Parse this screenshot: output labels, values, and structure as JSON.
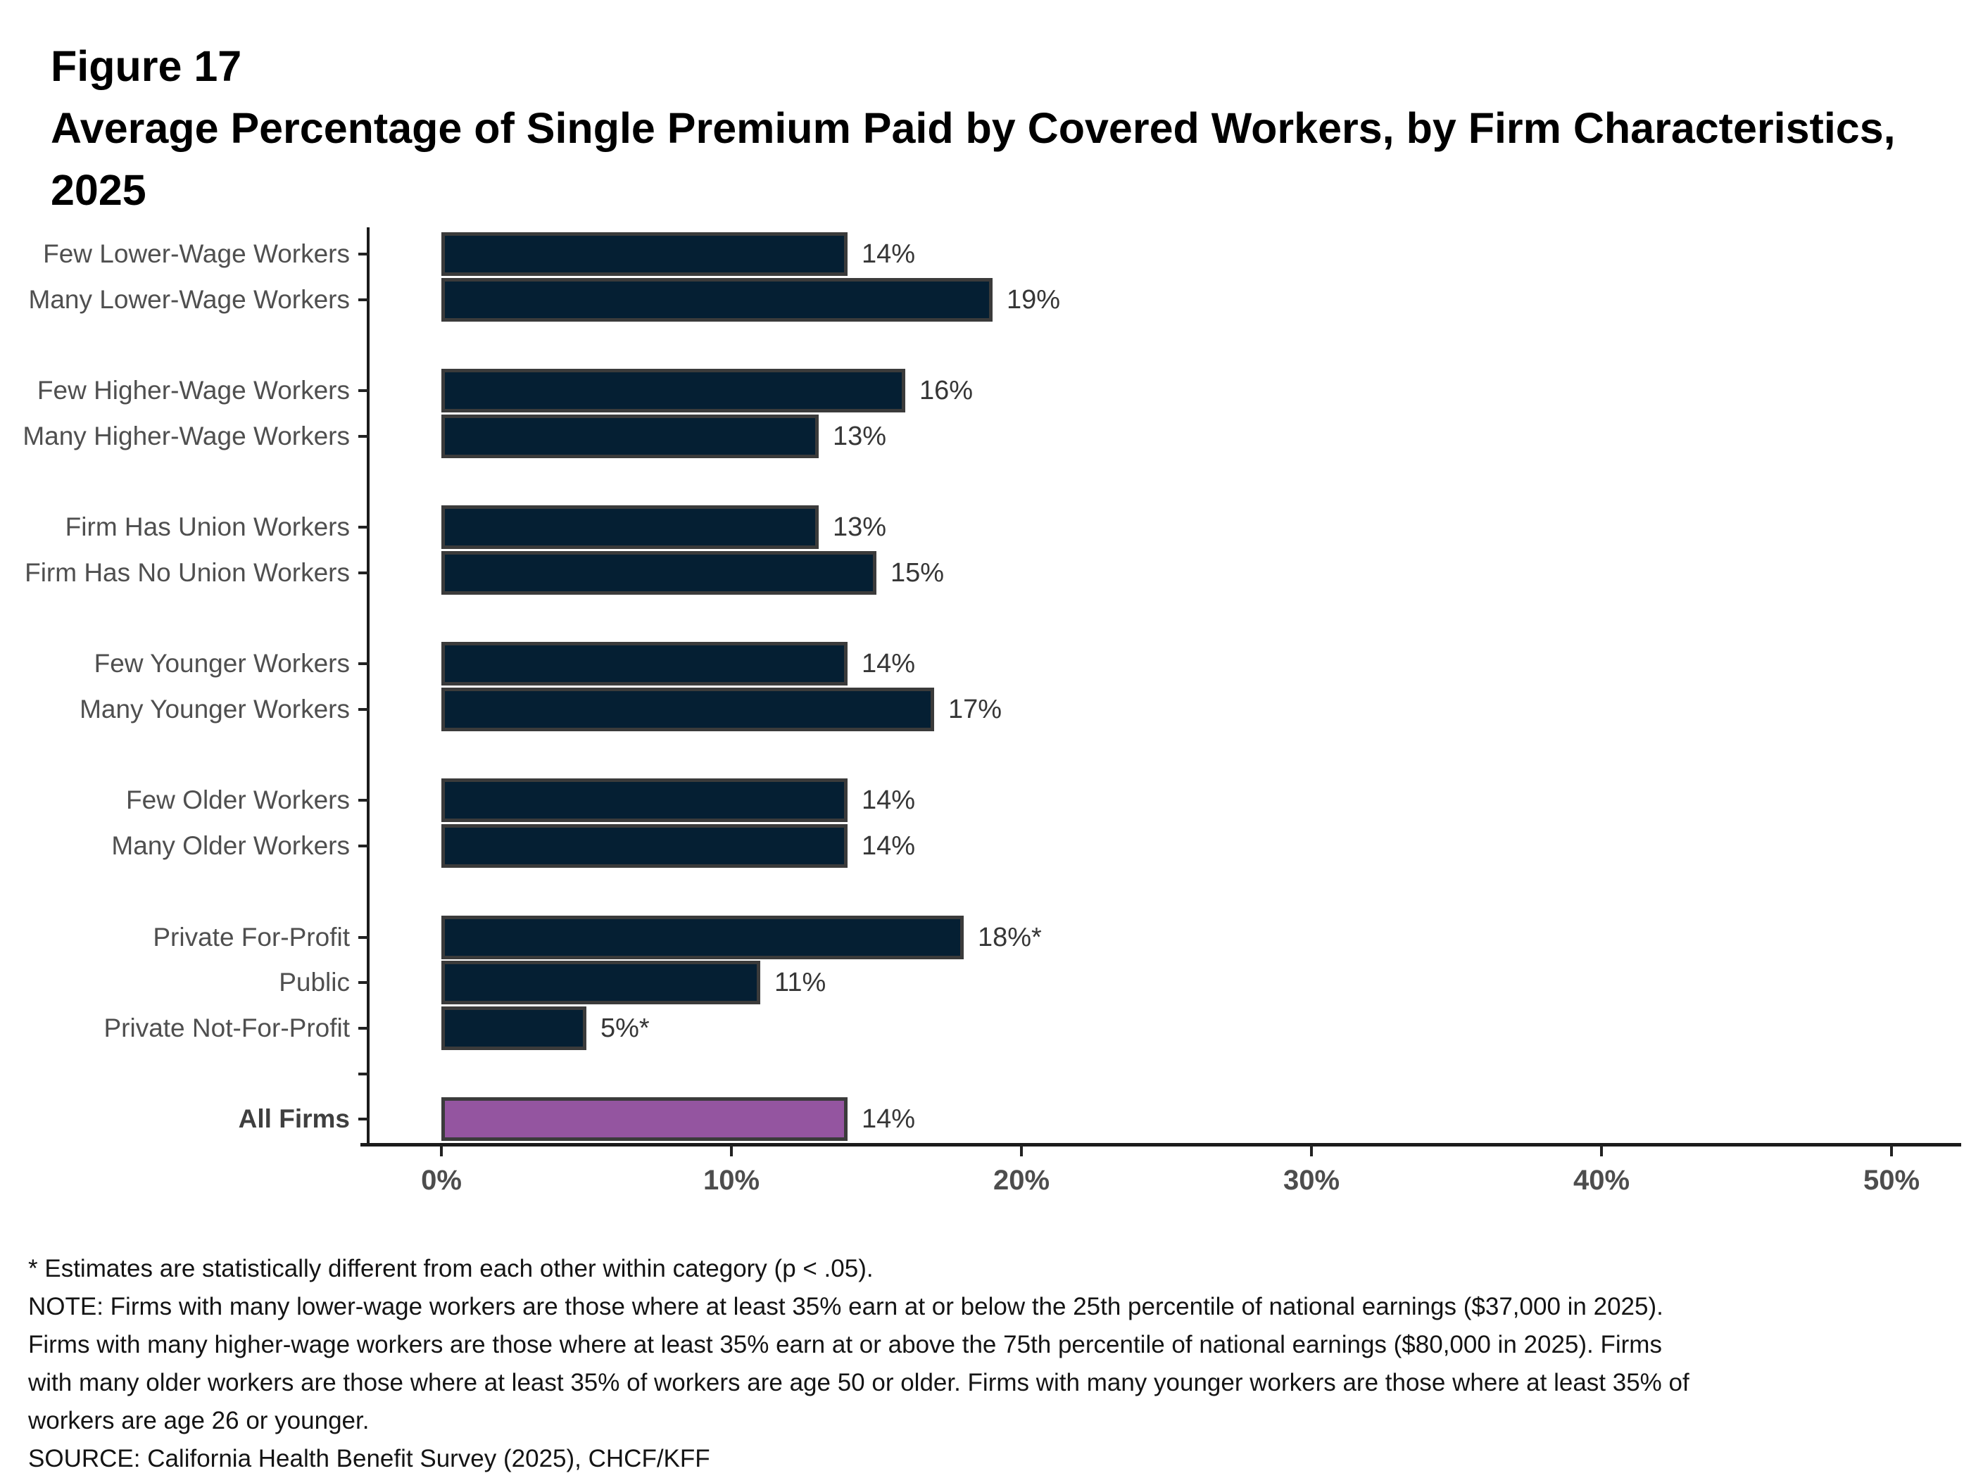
{
  "header": {
    "figure_label": "Figure 17",
    "title_line1": "Average Percentage of Single Premium Paid by Covered Workers, by Firm Characteristics,",
    "title_line2": "2025"
  },
  "chart_data": {
    "type": "bar",
    "orientation": "horizontal",
    "title": "Average Percentage of Single Premium Paid by Covered Workers, by Firm Characteristics, 2025",
    "xlabel": "",
    "ylabel": "",
    "xlim": [
      0,
      50
    ],
    "grid": false,
    "legend": false,
    "x_axis": {
      "ticks": [
        {
          "label": "0%",
          "value": 0
        },
        {
          "label": "10%",
          "value": 10
        },
        {
          "label": "20%",
          "value": 20
        },
        {
          "label": "30%",
          "value": 30
        },
        {
          "label": "40%",
          "value": 40
        },
        {
          "label": "50%",
          "value": 50
        }
      ]
    },
    "groups": [
      {
        "items": [
          {
            "label": "Few Lower-Wage Workers",
            "value": 14,
            "display": "14%"
          },
          {
            "label": "Many Lower-Wage Workers",
            "value": 19,
            "display": "19%"
          }
        ]
      },
      {
        "items": [
          {
            "label": "Few Higher-Wage Workers",
            "value": 16,
            "display": "16%"
          },
          {
            "label": "Many Higher-Wage Workers",
            "value": 13,
            "display": "13%"
          }
        ]
      },
      {
        "items": [
          {
            "label": "Firm Has Union Workers",
            "value": 13,
            "display": "13%"
          },
          {
            "label": "Firm Has No Union Workers",
            "value": 15,
            "display": "15%"
          }
        ]
      },
      {
        "items": [
          {
            "label": "Few Younger Workers",
            "value": 14,
            "display": "14%"
          },
          {
            "label": "Many Younger Workers",
            "value": 17,
            "display": "17%"
          }
        ]
      },
      {
        "items": [
          {
            "label": "Few Older Workers",
            "value": 14,
            "display": "14%"
          },
          {
            "label": "Many Older Workers",
            "value": 14,
            "display": "14%"
          }
        ]
      },
      {
        "items": [
          {
            "label": "Private For-Profit",
            "value": 18,
            "display": "18%*"
          },
          {
            "label": "Public",
            "value": 11,
            "display": "11%"
          },
          {
            "label": "Private Not-For-Profit",
            "value": 5,
            "display": "5%*"
          }
        ]
      },
      {
        "items": [
          {
            "label": "All Firms",
            "value": 14,
            "display": "14%",
            "highlight": true,
            "emphasis": true
          }
        ]
      }
    ],
    "colors": {
      "bar_fill": "#051F33",
      "bar_border": "#3B3B3B",
      "highlight_fill": "#9455A0",
      "axis": "#1B1B1B",
      "category_label": "#4F4F4F",
      "emphasis_label": "#3F3F3F",
      "value_label": "#363636",
      "tick_label": "#4D4D4D"
    }
  },
  "footnote": {
    "asterisk_line": "* Estimates are statistically different from each other within category (p < .05).",
    "note_lines": [
      "NOTE: Firms with many lower-wage workers are those where at least 35% earn at or below the 25th percentile of national earnings ($37,000 in 2025).",
      "Firms with many higher-wage workers are those where at least 35% earn at or above the 75th percentile of national earnings ($80,000 in 2025). Firms",
      "with many older workers are those where at least 35% of workers are age 50 or older. Firms with many younger workers are those where at least 35% of",
      "workers are age 26 or younger."
    ],
    "source": "SOURCE: California Health Benefit Survey (2025), CHCF/KFF"
  }
}
